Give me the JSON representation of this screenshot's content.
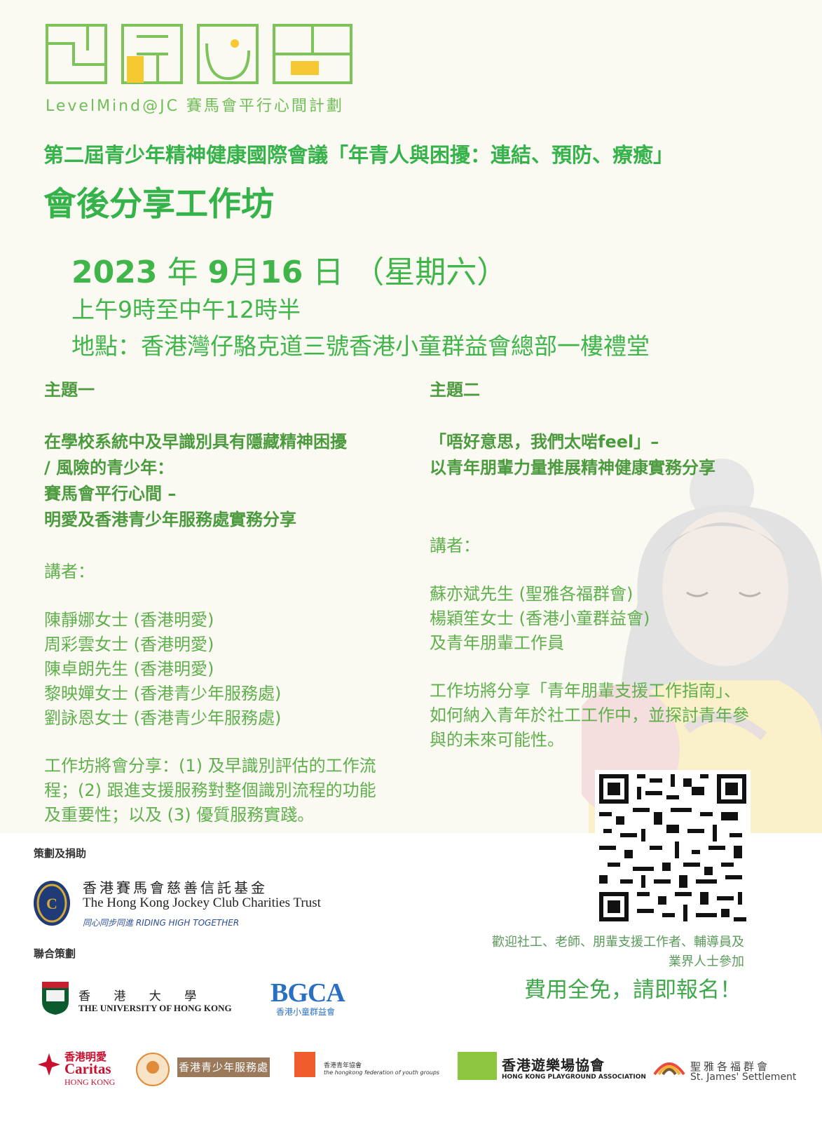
{
  "logo": {
    "subtitle": "LevelMind@JC 賽馬會平行心間計劃",
    "colors": {
      "green": "#7cc35a",
      "yellow": "#f6c933"
    }
  },
  "header": {
    "conference_title": "第二屆青少年精神健康國際會議「年青人與困擾：連結、預防、療癒」",
    "workshop_title": "會後分享工作坊"
  },
  "event": {
    "date_year": "2023",
    "date_year_suffix": " 年 ",
    "date_month": "9",
    "date_month_suffix": "月",
    "date_day": "16",
    "date_day_suffix": " 日  （星期六）",
    "time": "上午9時至中午12時半",
    "venue": "地點：香港灣仔駱克道三號香港小童群益會總部一樓禮堂"
  },
  "topic1": {
    "heading": "主題一",
    "title_lines": [
      "在學校系統中及早識別具有隱藏精神困擾",
      "/ 風險的青少年：",
      "賽馬會平行心間 –",
      "明愛及香港青少年服務處實務分享"
    ],
    "speakers_label": "講者：",
    "speakers": [
      "陳靜娜女士 (香港明愛)",
      "周彩雲女士 (香港明愛)",
      "陳卓朗先生 (香港明愛)",
      "黎映嬋女士 (香港青少年服務處)",
      "劉詠恩女士 (香港青少年服務處)"
    ],
    "description_lines": [
      "工作坊將會分享：(1) 及早識別評估的工作流",
      "程；(2) 跟進支援服務對整個識別流程的功能",
      "及重要性；以及 (3) 優質服務實踐。"
    ]
  },
  "topic2": {
    "heading": "主題二",
    "title_lines": [
      "「唔好意思，我們太啱feel」–",
      "以青年朋輩力量推展精神健康實務分享"
    ],
    "speakers_label": "講者：",
    "speakers": [
      "蘇亦斌先生 (聖雅各福群會)",
      "楊穎笙女士 (香港小童群益會)",
      "及青年朋輩工作員"
    ],
    "description_lines": [
      "工作坊將分享「青年朋輩支援工作指南」、",
      "如何納入青年於社工工作中，並探討青年參",
      "與的未來可能性。"
    ]
  },
  "sponsor": {
    "label": "策劃及捐助",
    "hkjc_cn": "香港賽馬會慈善信託基金",
    "hkjc_en": "The Hong Kong Jockey Club Charities Trust",
    "hkjc_tagline": "同心同步同進 RIDING HIGH TOGETHER"
  },
  "co_organisers": {
    "label": "聯合策劃",
    "hku_cn": "香 港 大 學",
    "hku_en": "THE UNIVERSITY OF HONG KONG",
    "bgca": "BGCA",
    "bgca_cn": "香港小童群益會"
  },
  "registration": {
    "welcome": "歡迎社工、老師、朋輩支援工作者、輔導員及業界人士參加",
    "free": "費用全免，請即報名！"
  },
  "partners": {
    "caritas_cn": "香港明愛",
    "caritas_en": "Caritas",
    "caritas_hk": "HONG KONG",
    "hkcys": "香港青少年服務處",
    "hkfyg_cn": "香港青年協會",
    "hkfyg_en": "the hongkong federation of youth groups",
    "hkpa_cn": "香港遊樂場協會",
    "hkpa_en": "HONG KONG PLAYGROUND ASSOCIATION",
    "sjs_cn": "聖雅各福群會",
    "sjs_en": "St. James' Settlement"
  }
}
